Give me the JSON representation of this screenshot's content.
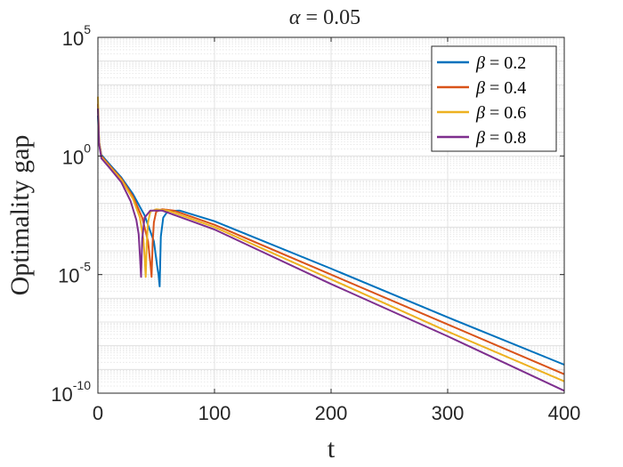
{
  "chart_data": {
    "type": "line",
    "title_prefix": "α",
    "title_value": "= 0.05",
    "xlabel": "t",
    "ylabel": "Optimality gap",
    "xlim": [
      0,
      400
    ],
    "ylim_log10": [
      -10,
      5
    ],
    "y_scale": "log",
    "grid": true,
    "minor_grid": true,
    "legend_placement": "top-right",
    "x_ticks": [
      0,
      100,
      200,
      300,
      400
    ],
    "y_ticks": [
      {
        "base": "10",
        "exp": "5",
        "log": 5
      },
      {
        "base": "10",
        "exp": "0",
        "log": 0
      },
      {
        "base": "10",
        "exp": "-5",
        "log": -5
      },
      {
        "base": "10",
        "exp": "-10",
        "log": -10
      }
    ],
    "series": [
      {
        "name": "β = 0.2",
        "label_symbol": "β",
        "label_value": "= 0.2",
        "color": "#0072BD",
        "x": [
          0,
          1,
          3,
          10,
          20,
          30,
          40,
          48,
          51,
          52,
          53,
          54,
          56,
          60,
          70,
          100,
          200,
          300,
          400
        ],
        "log_y": [
          1.7,
          0.6,
          0.05,
          -0.35,
          -0.9,
          -1.6,
          -2.5,
          -3.6,
          -4.7,
          -5.0,
          -5.5,
          -3.4,
          -2.6,
          -2.32,
          -2.3,
          -2.75,
          -4.75,
          -6.8,
          -8.8
        ]
      },
      {
        "name": "β = 0.4",
        "label_symbol": "β",
        "label_value": "= 0.4",
        "color": "#D95319",
        "x": [
          0,
          1,
          3,
          10,
          20,
          30,
          38,
          43,
          45,
          46,
          47,
          48,
          50,
          55,
          65,
          100,
          200,
          300,
          400
        ],
        "log_y": [
          2.2,
          0.6,
          0.0,
          -0.4,
          -0.95,
          -1.7,
          -2.6,
          -3.6,
          -4.5,
          -5.1,
          -3.6,
          -2.8,
          -2.35,
          -2.25,
          -2.3,
          -2.9,
          -5.0,
          -7.1,
          -9.2
        ]
      },
      {
        "name": "β = 0.6",
        "label_symbol": "β",
        "label_value": "= 0.6",
        "color": "#EDB120",
        "x": [
          0,
          1,
          3,
          10,
          20,
          30,
          36,
          39,
          40,
          41,
          42,
          43,
          45,
          50,
          60,
          100,
          200,
          300,
          400
        ],
        "log_y": [
          2.5,
          0.6,
          -0.05,
          -0.45,
          -1.0,
          -1.8,
          -2.6,
          -3.5,
          -4.2,
          -5.1,
          -3.6,
          -2.8,
          -2.35,
          -2.25,
          -2.3,
          -3.0,
          -5.2,
          -7.4,
          -9.5
        ]
      },
      {
        "name": "β = 0.8",
        "label_symbol": "β",
        "label_value": "= 0.8",
        "color": "#7E2F8E",
        "x": [
          0,
          1,
          3,
          10,
          20,
          28,
          33,
          35,
          36,
          37,
          38,
          40,
          45,
          55,
          100,
          200,
          300,
          400
        ],
        "log_y": [
          2.0,
          0.5,
          -0.1,
          -0.5,
          -1.1,
          -1.9,
          -2.7,
          -3.3,
          -4.2,
          -5.1,
          -3.5,
          -2.6,
          -2.3,
          -2.3,
          -3.1,
          -5.4,
          -7.6,
          -9.9
        ]
      }
    ]
  }
}
